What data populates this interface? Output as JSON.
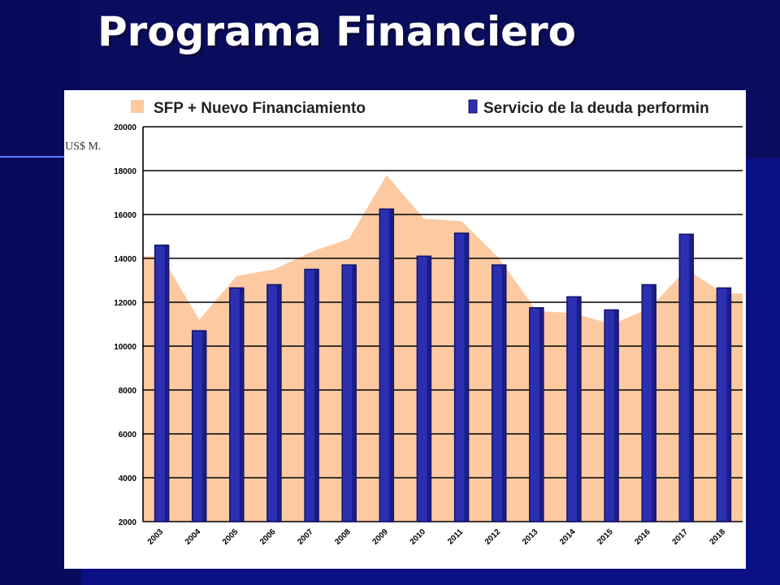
{
  "slide": {
    "title": "Programa Financiero"
  },
  "colors": {
    "background": "#0b0f84",
    "area": "#fcc9a0",
    "bar": "#2b2fb0",
    "bar_dark": "#11136b",
    "grid": "#000000"
  },
  "chart_data": {
    "type": "bar",
    "ylabel": "US$ M.",
    "ylim": [
      2000,
      20000
    ],
    "y_ticks": [
      2000,
      4000,
      6000,
      8000,
      10000,
      12000,
      14000,
      16000,
      18000,
      20000
    ],
    "grid": true,
    "legend_position": "top",
    "categories": [
      "2003",
      "2004",
      "2005",
      "2006",
      "2007",
      "2008",
      "2009",
      "2010",
      "2011",
      "2012",
      "2013",
      "2014",
      "2015",
      "2016",
      "2017",
      "2018"
    ],
    "series": [
      {
        "name": "SFP + Nuevo Financiamiento",
        "type": "area",
        "values": [
          14100,
          11200,
          13200,
          13500,
          14300,
          14900,
          17800,
          15800,
          15700,
          14000,
          11600,
          11500,
          11000,
          11700,
          13500,
          12400
        ]
      },
      {
        "name": "Servicio de la deuda performin",
        "type": "bar",
        "values": [
          14600,
          10700,
          12650,
          12800,
          13500,
          13700,
          16250,
          14100,
          15150,
          13700,
          11750,
          12250,
          11650,
          12800,
          15100,
          12650
        ]
      }
    ]
  }
}
